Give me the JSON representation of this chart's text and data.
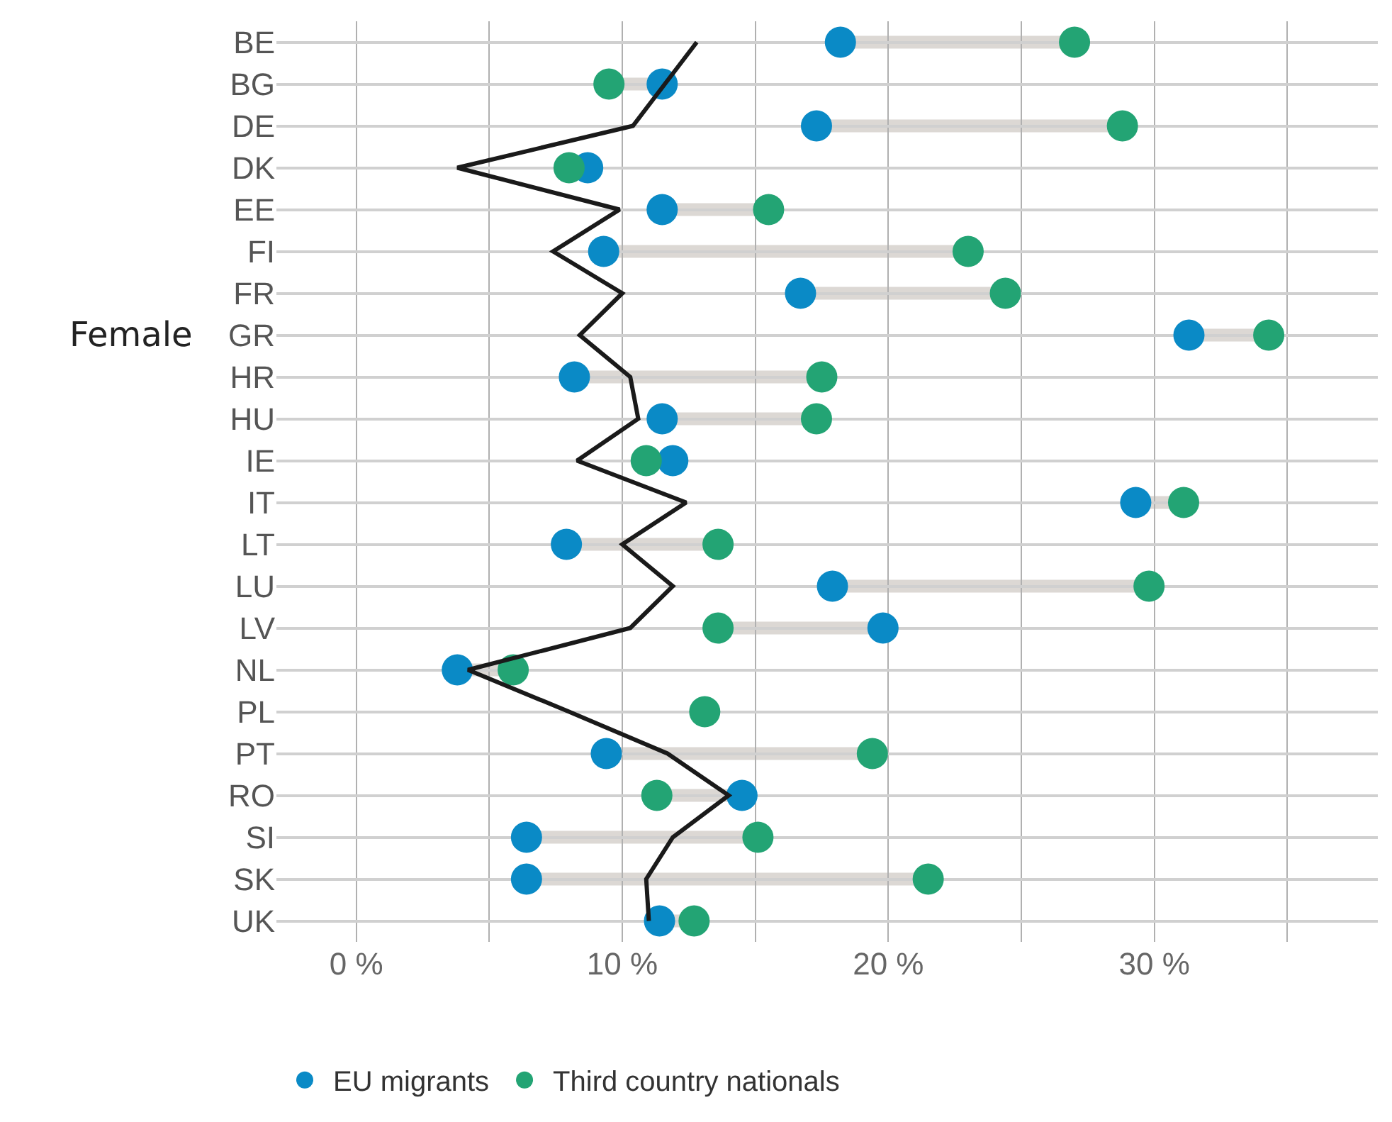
{
  "chart_data": {
    "type": "scatter",
    "orientation": "horizontal",
    "categories": [
      "BE",
      "BG",
      "DE",
      "DK",
      "EE",
      "FI",
      "FR",
      "GR",
      "HR",
      "HU",
      "IE",
      "IT",
      "LT",
      "LU",
      "LV",
      "NL",
      "PL",
      "PT",
      "RO",
      "SI",
      "SK",
      "UK"
    ],
    "series": [
      {
        "type": "line",
        "color": "#1a1a1a",
        "marker": "none",
        "values": [
          12.8,
          11.6,
          10.4,
          3.8,
          9.9,
          7.4,
          10.0,
          8.4,
          10.3,
          10.6,
          8.3,
          12.4,
          10.0,
          11.9,
          10.3,
          4.2,
          8.0,
          11.7,
          14.0,
          11.9,
          10.9,
          11.0
        ]
      },
      {
        "name": "EU migrants",
        "color": "#0a8ac6",
        "marker": "circle",
        "values": [
          18.2,
          11.5,
          17.3,
          8.7,
          11.5,
          9.3,
          16.7,
          31.3,
          8.2,
          11.5,
          11.9,
          29.3,
          7.9,
          17.9,
          19.8,
          3.8,
          null,
          9.4,
          14.5,
          6.4,
          6.4,
          11.4
        ]
      },
      {
        "name": "Third country nationals",
        "color": "#23a474",
        "marker": "circle",
        "values": [
          27.0,
          9.5,
          28.8,
          8.0,
          15.5,
          23.0,
          24.4,
          34.3,
          17.5,
          17.3,
          10.9,
          31.1,
          13.6,
          29.8,
          13.6,
          5.9,
          13.1,
          19.4,
          11.3,
          15.1,
          21.5,
          12.7
        ]
      }
    ],
    "xlim": [
      -3,
      38.4
    ],
    "xticks": [
      {
        "value": 0,
        "label": "0 %"
      },
      {
        "value": 5,
        "label": null
      },
      {
        "value": 10,
        "label": "10 %"
      },
      {
        "value": 15,
        "label": null
      },
      {
        "value": 20,
        "label": "20 %"
      },
      {
        "value": 25,
        "label": null
      },
      {
        "value": 30,
        "label": "30 %"
      },
      {
        "value": 35,
        "label": null
      }
    ],
    "annotations": [
      "Female"
    ],
    "grid": true,
    "legend": "bottom"
  }
}
